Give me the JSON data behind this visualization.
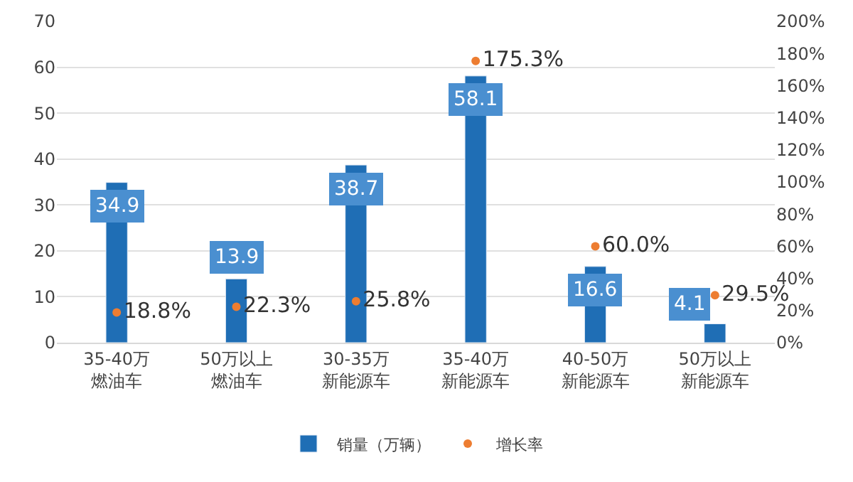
{
  "chart_data": {
    "type": "bar",
    "categories": [
      "35-40万燃油车",
      "50万以上燃油车",
      "30-35万新能源车",
      "35-40万新能源车",
      "40-50万新能源车",
      "50万以上新能源车"
    ],
    "series": [
      {
        "name": "销量（万辆）",
        "color": "#1f6eb5",
        "values": [
          34.9,
          13.9,
          38.7,
          58.1,
          16.6,
          4.1
        ],
        "value_labels": [
          "34.9",
          "13.9",
          "38.7",
          "58.1",
          "16.6",
          "4.1"
        ]
      },
      {
        "name": "增长率",
        "type": "scatter",
        "axis": "y2",
        "color": "#ed7d31",
        "values": [
          18.8,
          22.3,
          25.8,
          175.3,
          60.0,
          29.5
        ],
        "value_labels": [
          "18.8%",
          "22.3%",
          "25.8%",
          "175.3%",
          "60.0%",
          "29.5%"
        ]
      }
    ],
    "ylim": [
      0,
      70
    ],
    "yticks": [
      0,
      10,
      20,
      30,
      40,
      50,
      60,
      70
    ],
    "y2lim": [
      0,
      200
    ],
    "y2ticks": [
      {
        "value": 0,
        "label": "0%"
      },
      {
        "value": 20,
        "label": "20%"
      },
      {
        "value": 40,
        "label": "40%"
      },
      {
        "value": 60,
        "label": "60%"
      },
      {
        "value": 80,
        "label": "80%"
      },
      {
        "value": 100,
        "label": "100%"
      },
      {
        "value": 120,
        "label": "120%"
      },
      {
        "value": 140,
        "label": "140%"
      },
      {
        "value": 160,
        "label": "160%"
      },
      {
        "value": 180,
        "label": "180%"
      },
      {
        "value": 200,
        "label": "200%"
      }
    ],
    "grid": "y",
    "legend": "bottom",
    "marker": "circle"
  }
}
